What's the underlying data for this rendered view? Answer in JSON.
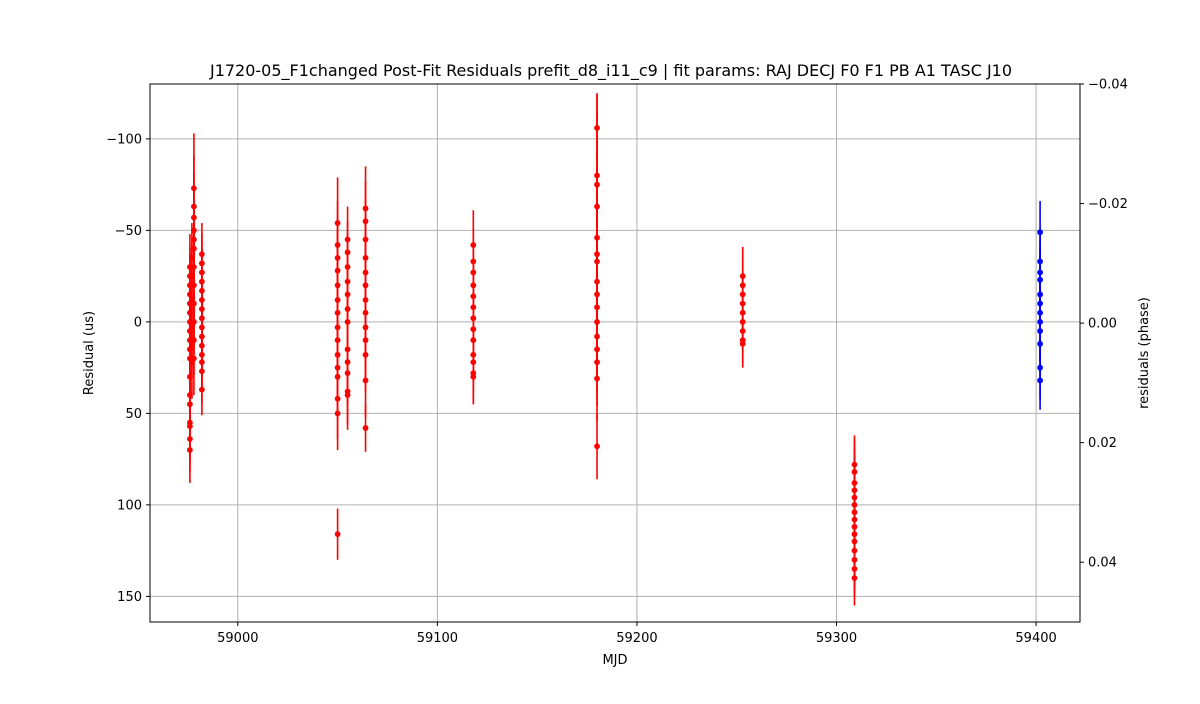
{
  "chart_data": {
    "type": "scatter",
    "title": "J1720-05_F1changed Post-Fit Residuals prefit_d8_i11_c9 | fit params: RAJ DECJ F0 F1 PB A1 TASC J10",
    "xlabel": "MJD",
    "ylabel": "Residual (us)",
    "y2label": "residuals (phase)",
    "xlim": [
      58956,
      59422
    ],
    "ylim": [
      164,
      -130
    ],
    "y2lim": [
      0.05,
      -0.04
    ],
    "x_ticks": [
      59000,
      59100,
      59200,
      59300,
      59400
    ],
    "y_ticks": [
      -100,
      -50,
      0,
      50,
      100,
      150
    ],
    "y2_ticks": [
      -0.04,
      -0.02,
      0.0,
      0.02,
      0.04
    ],
    "y_tick_labels": [
      "−100",
      "−50",
      "0",
      "50",
      "100",
      "150"
    ],
    "y2_tick_labels": [
      "−0.04",
      "−0.02",
      "0.00",
      "0.02",
      "0.04"
    ],
    "grid": true,
    "y_inverted": true,
    "series": [
      {
        "color": "#ff0000",
        "marker": "circle",
        "points": [
          [
            58976,
            -30,
            18
          ],
          [
            58976,
            -25,
            16
          ],
          [
            58976,
            -20,
            17
          ],
          [
            58976,
            -15,
            18
          ],
          [
            58976,
            -10,
            20
          ],
          [
            58976,
            -5,
            18
          ],
          [
            58976,
            0,
            17
          ],
          [
            58976,
            5,
            18
          ],
          [
            58976,
            10,
            20
          ],
          [
            58976,
            15,
            19
          ],
          [
            58976,
            20,
            21
          ],
          [
            58976,
            30,
            20
          ],
          [
            58976,
            40,
            19
          ],
          [
            58976,
            45,
            20
          ],
          [
            58976,
            55,
            19
          ],
          [
            58976,
            57,
            20
          ],
          [
            58976,
            64,
            18
          ],
          [
            58976,
            70,
            18
          ],
          [
            58977,
            -35,
            19
          ],
          [
            58977,
            -25,
            18
          ],
          [
            58977,
            -12,
            18
          ],
          [
            58977,
            2,
            17
          ],
          [
            58977,
            12,
            19
          ],
          [
            58977,
            22,
            20
          ],
          [
            58978,
            -73,
            30
          ],
          [
            58978,
            -63,
            28
          ],
          [
            58978,
            -57,
            24
          ],
          [
            58978,
            -50,
            22
          ],
          [
            58978,
            -45,
            20
          ],
          [
            58978,
            -40,
            21
          ],
          [
            58978,
            -30,
            19
          ],
          [
            58978,
            -20,
            18
          ],
          [
            58978,
            -10,
            18
          ],
          [
            58978,
            0,
            17
          ],
          [
            58978,
            10,
            19
          ],
          [
            58978,
            20,
            20
          ],
          [
            58982,
            -37,
            17
          ],
          [
            58982,
            -32,
            16
          ],
          [
            58982,
            -27,
            17
          ],
          [
            58982,
            -22,
            18
          ],
          [
            58982,
            -17,
            17
          ],
          [
            58982,
            -12,
            16
          ],
          [
            58982,
            -7,
            17
          ],
          [
            58982,
            -2,
            18
          ],
          [
            58982,
            3,
            17
          ],
          [
            58982,
            8,
            18
          ],
          [
            58982,
            13,
            17
          ],
          [
            58982,
            18,
            17
          ],
          [
            58982,
            22,
            16
          ],
          [
            58982,
            27,
            18
          ],
          [
            58982,
            37,
            14
          ],
          [
            59050,
            -54,
            25
          ],
          [
            59050,
            -42,
            24
          ],
          [
            59050,
            -35,
            23
          ],
          [
            59050,
            -28,
            22
          ],
          [
            59050,
            -20,
            22
          ],
          [
            59050,
            -12,
            23
          ],
          [
            59050,
            -5,
            24
          ],
          [
            59050,
            3,
            25
          ],
          [
            59050,
            10,
            24
          ],
          [
            59050,
            18,
            23
          ],
          [
            59050,
            25,
            24
          ],
          [
            59050,
            30,
            23
          ],
          [
            59050,
            42,
            22
          ],
          [
            59050,
            50,
            20
          ],
          [
            59050,
            116,
            14
          ],
          [
            59055,
            -45,
            18
          ],
          [
            59055,
            -38,
            17
          ],
          [
            59055,
            -30,
            18
          ],
          [
            59055,
            -22,
            17
          ],
          [
            59055,
            -15,
            18
          ],
          [
            59055,
            -7,
            17
          ],
          [
            59055,
            0,
            18
          ],
          [
            59055,
            15,
            20
          ],
          [
            59055,
            22,
            17
          ],
          [
            59055,
            28,
            18
          ],
          [
            59055,
            38,
            18
          ],
          [
            59055,
            40,
            19
          ],
          [
            59064,
            -62,
            23
          ],
          [
            59064,
            -55,
            22
          ],
          [
            59064,
            -45,
            23
          ],
          [
            59064,
            -35,
            22
          ],
          [
            59064,
            -27,
            21
          ],
          [
            59064,
            -20,
            22
          ],
          [
            59064,
            -12,
            21
          ],
          [
            59064,
            -5,
            20
          ],
          [
            59064,
            3,
            21
          ],
          [
            59064,
            10,
            22
          ],
          [
            59064,
            18,
            20
          ],
          [
            59064,
            32,
            20
          ],
          [
            59064,
            58,
            13
          ],
          [
            59118,
            -42,
            19
          ],
          [
            59118,
            -33,
            18
          ],
          [
            59118,
            -27,
            17
          ],
          [
            59118,
            -20,
            16
          ],
          [
            59118,
            -14,
            17
          ],
          [
            59118,
            -8,
            16
          ],
          [
            59118,
            -2,
            17
          ],
          [
            59118,
            4,
            16
          ],
          [
            59118,
            10,
            17
          ],
          [
            59118,
            18,
            16
          ],
          [
            59118,
            22,
            17
          ],
          [
            59118,
            28,
            17
          ],
          [
            59118,
            30,
            15
          ],
          [
            59180,
            -106,
            18
          ],
          [
            59180,
            -80,
            45
          ],
          [
            59180,
            -75,
            40
          ],
          [
            59180,
            -63,
            30
          ],
          [
            59180,
            -46,
            38
          ],
          [
            59180,
            -37,
            32
          ],
          [
            59180,
            -33,
            30
          ],
          [
            59180,
            -22,
            28
          ],
          [
            59180,
            -15,
            27
          ],
          [
            59180,
            -8,
            26
          ],
          [
            59180,
            0,
            25
          ],
          [
            59180,
            8,
            24
          ],
          [
            59180,
            15,
            23
          ],
          [
            59180,
            22,
            24
          ],
          [
            59180,
            31,
            23
          ],
          [
            59180,
            68,
            18
          ],
          [
            59253,
            -25,
            16
          ],
          [
            59253,
            -20,
            15
          ],
          [
            59253,
            -15,
            14
          ],
          [
            59253,
            -10,
            14
          ],
          [
            59253,
            -5,
            13
          ],
          [
            59253,
            0,
            14
          ],
          [
            59253,
            5,
            13
          ],
          [
            59253,
            10,
            13
          ],
          [
            59253,
            12,
            13
          ],
          [
            59309,
            78,
            16
          ],
          [
            59309,
            82,
            17
          ],
          [
            59309,
            88,
            18
          ],
          [
            59309,
            92,
            17
          ],
          [
            59309,
            96,
            17
          ],
          [
            59309,
            100,
            16
          ],
          [
            59309,
            104,
            17
          ],
          [
            59309,
            108,
            16
          ],
          [
            59309,
            112,
            17
          ],
          [
            59309,
            116,
            15
          ],
          [
            59309,
            120,
            16
          ],
          [
            59309,
            125,
            15
          ],
          [
            59309,
            130,
            16
          ],
          [
            59309,
            135,
            15
          ],
          [
            59309,
            140,
            15
          ]
        ]
      },
      {
        "color": "#0000ff",
        "marker": "circle",
        "points": [
          [
            59402,
            -49,
            17
          ],
          [
            59402,
            -33,
            18
          ],
          [
            59402,
            -27,
            17
          ],
          [
            59402,
            -23,
            16
          ],
          [
            59402,
            -15,
            17
          ],
          [
            59402,
            -10,
            16
          ],
          [
            59402,
            -5,
            17
          ],
          [
            59402,
            0,
            18
          ],
          [
            59402,
            5,
            17
          ],
          [
            59402,
            12,
            18
          ],
          [
            59402,
            25,
            17
          ],
          [
            59402,
            32,
            16
          ]
        ]
      }
    ]
  }
}
